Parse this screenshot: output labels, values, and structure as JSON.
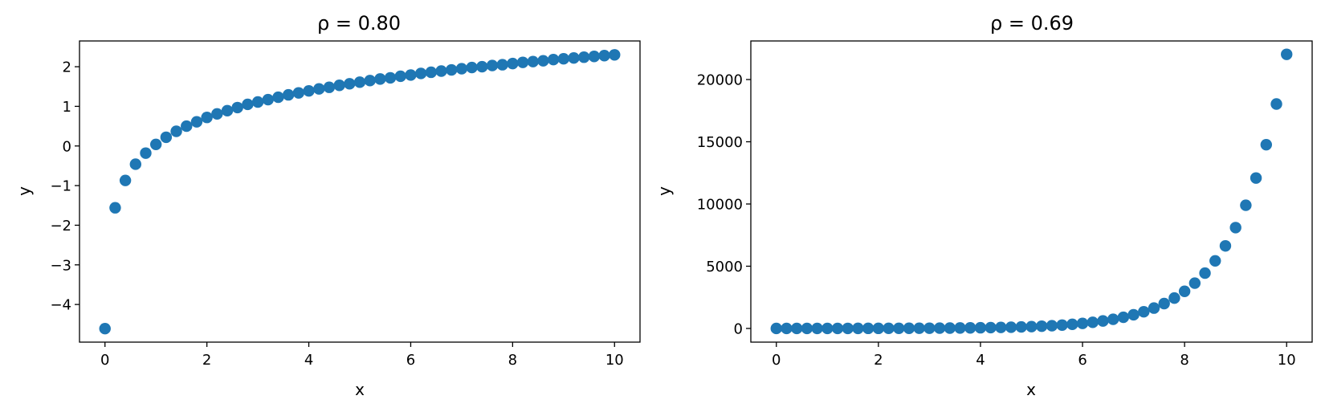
{
  "chart_data": [
    {
      "type": "scatter",
      "title": "ρ = 0.80",
      "xlabel": "x",
      "ylabel": "y",
      "xlim": [
        -0.5,
        10.5
      ],
      "ylim": [
        -4.95,
        2.65
      ],
      "xticks": [
        0,
        2,
        4,
        6,
        8,
        10
      ],
      "xtick_labels": [
        "0",
        "2",
        "4",
        "6",
        "8",
        "10"
      ],
      "yticks": [
        -4,
        -3,
        -2,
        -1,
        0,
        1,
        2
      ],
      "ytick_labels": [
        "−4",
        "−3",
        "−2",
        "−1",
        "0",
        "1",
        "2"
      ],
      "color": "#1f77b4",
      "x": [
        0,
        0.2,
        0.4,
        0.6,
        0.8,
        1.0,
        1.2,
        1.4,
        1.6,
        1.8,
        2.0,
        2.2,
        2.4,
        2.6,
        2.8,
        3.0,
        3.2,
        3.4,
        3.6,
        3.8,
        4.0,
        4.2,
        4.4,
        4.6,
        4.8,
        5.0,
        5.2,
        5.4,
        5.6,
        5.8,
        6.0,
        6.2,
        6.4,
        6.6,
        6.8,
        7.0,
        7.2,
        7.4,
        7.6,
        7.8,
        8.0,
        8.2,
        8.4,
        8.6,
        8.8,
        9.0,
        9.2,
        9.4,
        9.6,
        9.8,
        10.0
      ],
      "y": [
        -4.61,
        -1.56,
        -0.87,
        -0.46,
        -0.18,
        0.04,
        0.22,
        0.37,
        0.5,
        0.61,
        0.72,
        0.81,
        0.89,
        0.97,
        1.05,
        1.11,
        1.17,
        1.23,
        1.29,
        1.34,
        1.39,
        1.44,
        1.48,
        1.53,
        1.57,
        1.61,
        1.65,
        1.69,
        1.72,
        1.76,
        1.79,
        1.83,
        1.86,
        1.89,
        1.92,
        1.95,
        1.98,
        2.0,
        2.03,
        2.05,
        2.08,
        2.11,
        2.13,
        2.15,
        2.18,
        2.2,
        2.22,
        2.24,
        2.26,
        2.28,
        2.3
      ]
    },
    {
      "type": "scatter",
      "title": "ρ = 0.69",
      "xlabel": "x",
      "ylabel": "y",
      "xlim": [
        -0.5,
        10.5
      ],
      "ylim": [
        -1100,
        23100
      ],
      "xticks": [
        0,
        2,
        4,
        6,
        8,
        10
      ],
      "xtick_labels": [
        "0",
        "2",
        "4",
        "6",
        "8",
        "10"
      ],
      "yticks": [
        0,
        5000,
        10000,
        15000,
        20000
      ],
      "ytick_labels": [
        "0",
        "5000",
        "10000",
        "15000",
        "20000"
      ],
      "color": "#1f77b4",
      "x": [
        0,
        0.2,
        0.4,
        0.6,
        0.8,
        1.0,
        1.2,
        1.4,
        1.6,
        1.8,
        2.0,
        2.2,
        2.4,
        2.6,
        2.8,
        3.0,
        3.2,
        3.4,
        3.6,
        3.8,
        4.0,
        4.2,
        4.4,
        4.6,
        4.8,
        5.0,
        5.2,
        5.4,
        5.6,
        5.8,
        6.0,
        6.2,
        6.4,
        6.6,
        6.8,
        7.0,
        7.2,
        7.4,
        7.6,
        7.8,
        8.0,
        8.2,
        8.4,
        8.6,
        8.8,
        9.0,
        9.2,
        9.4,
        9.6,
        9.8,
        10.0
      ],
      "y": [
        1,
        1,
        1,
        2,
        2,
        3,
        3,
        4,
        5,
        6,
        7,
        9,
        11,
        13,
        16,
        20,
        25,
        30,
        37,
        45,
        55,
        67,
        81,
        99,
        122,
        148,
        181,
        221,
        270,
        330,
        403,
        493,
        602,
        735,
        898,
        1097,
        1339,
        1636,
        1998,
        2441,
        2981,
        3641,
        4447,
        5432,
        6634,
        8103,
        9897,
        12088,
        14765,
        18034,
        22026
      ]
    }
  ]
}
